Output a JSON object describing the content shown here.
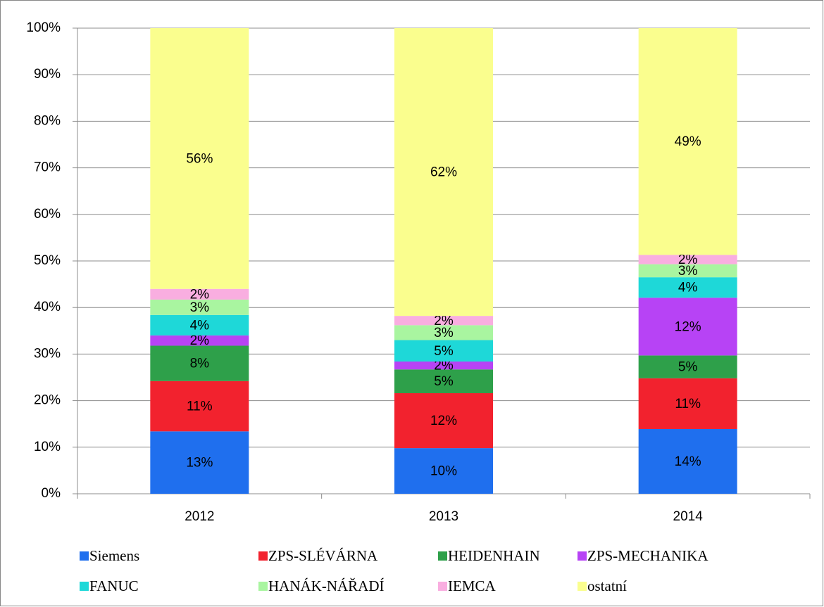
{
  "chart_data": {
    "type": "stacked_bar",
    "categories": [
      "2012",
      "2013",
      "2014"
    ],
    "ylim": [
      0,
      100
    ],
    "yticks": [
      {
        "value": 0,
        "label": "0%"
      },
      {
        "value": 10,
        "label": "10%"
      },
      {
        "value": 20,
        "label": "20%"
      },
      {
        "value": 30,
        "label": "30%"
      },
      {
        "value": 40,
        "label": "40%"
      },
      {
        "value": 50,
        "label": "50%"
      },
      {
        "value": 60,
        "label": "60%"
      },
      {
        "value": 70,
        "label": "70%"
      },
      {
        "value": 80,
        "label": "80%"
      },
      {
        "value": 90,
        "label": "90%"
      },
      {
        "value": 100,
        "label": "100%"
      }
    ],
    "grid": true,
    "legend": "bottom",
    "series": [
      {
        "name": "Siemens",
        "color": "#1f6fee",
        "values": [
          13.4,
          9.8,
          13.9
        ],
        "value_labels": [
          "13%",
          "10%",
          "14%"
        ]
      },
      {
        "name": "ZPS-SLÉVÁRNA",
        "color": "#f2222e",
        "values": [
          10.8,
          11.8,
          10.9
        ],
        "value_labels": [
          "11%",
          "12%",
          "11%"
        ]
      },
      {
        "name": "HEIDENHAIN",
        "color": "#2ea04a",
        "values": [
          7.6,
          5.1,
          4.9
        ],
        "value_labels": [
          "8%",
          "5%",
          "5%"
        ]
      },
      {
        "name": "ZPS-MECHANIKA",
        "color": "#b743f5",
        "values": [
          2.2,
          1.7,
          12.4
        ],
        "value_labels": [
          "2%",
          "2%",
          "12%"
        ]
      },
      {
        "name": "FANUC",
        "color": "#1ed8d8",
        "values": [
          4.4,
          4.6,
          4.4
        ],
        "value_labels": [
          "4%",
          "5%",
          "4%"
        ]
      },
      {
        "name": "HANÁK-NÁŘADÍ",
        "color": "#a9f5a0",
        "values": [
          3.3,
          3.2,
          2.8
        ],
        "value_labels": [
          "3%",
          "3%",
          "3%"
        ]
      },
      {
        "name": "IEMCA",
        "color": "#f9aee0",
        "values": [
          2.3,
          2.0,
          2.0
        ],
        "value_labels": [
          "2%",
          "2%",
          "2%"
        ]
      },
      {
        "name": "ostatní",
        "color": "#fafe8e",
        "values": [
          56.0,
          61.8,
          48.7
        ],
        "value_labels": [
          "56%",
          "62%",
          "49%"
        ]
      }
    ]
  }
}
